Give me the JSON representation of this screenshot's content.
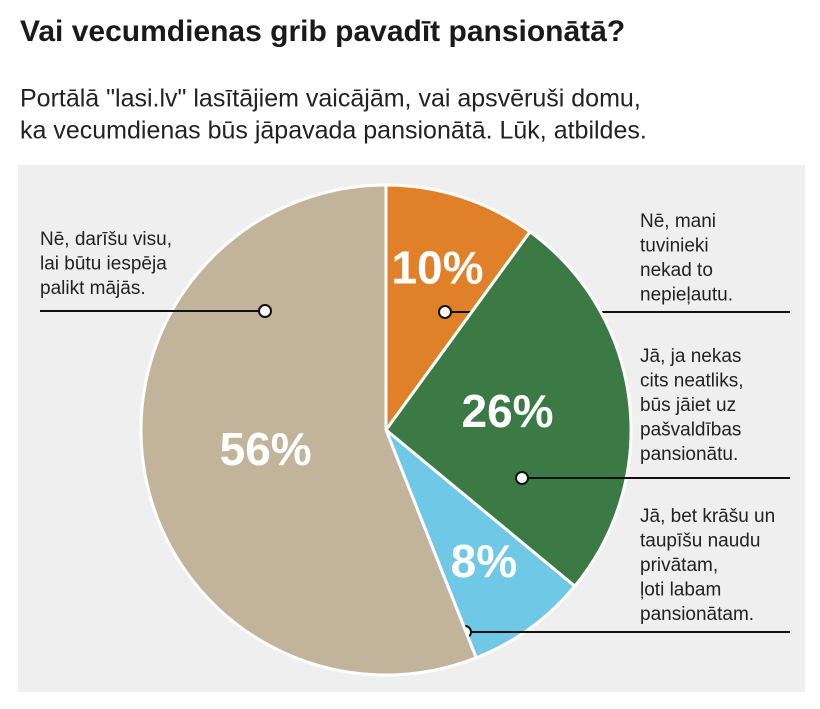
{
  "chart_data": {
    "type": "pie",
    "title": "Vai vecumdienas grib pavadīt pansionātā?",
    "subtitle": [
      "Portālā \"lasi.lv\" lasītājiem vaicājām, vai apsvēruši domu,",
      "ka vecumdienas būs jāpavada pansionātā. Lūk, atbildes."
    ],
    "categories": [
      "Nē, mani\ntuvinieki\nnekad to\nnepieļautu.",
      "Jā, ja nekas\ncits neatliks,\nbūs jāiet uz\npašvaldības\npansionātu.",
      "Jā, bet krāšu un\ntaupīšu naudu\nprivātam,\nļoti labam\npansionātam.",
      "Nē, darīšu visu,\nlai būtu iespēja\npalikt mājās."
    ],
    "values": [
      10,
      26,
      8,
      56
    ],
    "value_labels": [
      "10%",
      "26%",
      "8%",
      "56%"
    ],
    "colors": [
      "#e0812a",
      "#3b7a44",
      "#6fc8e6",
      "#c2b49a"
    ]
  }
}
